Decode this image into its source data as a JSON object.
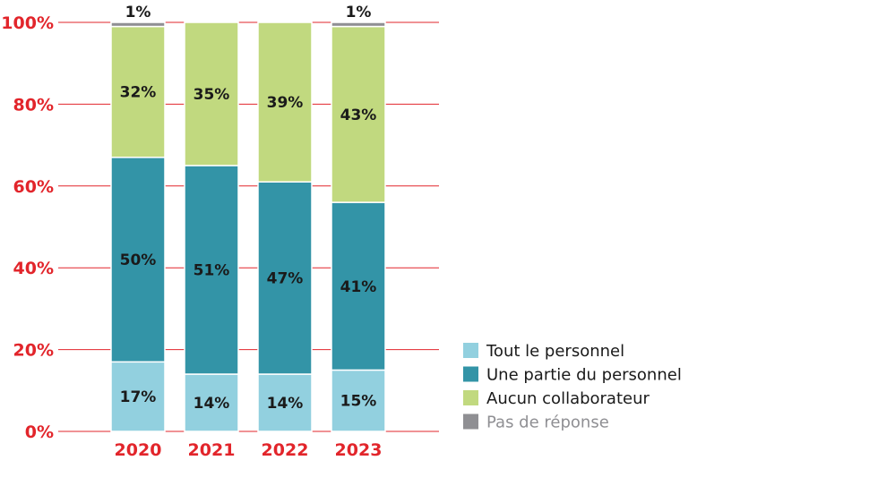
{
  "chart_data": {
    "type": "bar",
    "stacked": true,
    "categories": [
      "2020",
      "2021",
      "2022",
      "2023"
    ],
    "series": [
      {
        "name": "Tout le personnel",
        "values": [
          17,
          14,
          14,
          15
        ],
        "labels": [
          "17%",
          "14%",
          "14%",
          "15%"
        ],
        "color": "#92d0df"
      },
      {
        "name": "Une partie du personnel",
        "values": [
          50,
          51,
          47,
          41
        ],
        "labels": [
          "50%",
          "51%",
          "47%",
          "41%"
        ],
        "color": "#3394a7"
      },
      {
        "name": "Aucun collaborateur",
        "values": [
          32,
          35,
          39,
          43
        ],
        "labels": [
          "32%",
          "35%",
          "39%",
          "43%"
        ],
        "color": "#c1d97f"
      },
      {
        "name": "Pas de réponse",
        "values": [
          1,
          0,
          0,
          1
        ],
        "labels": [
          "1%",
          "",
          "",
          "1%"
        ],
        "color": "#8f8f93"
      }
    ],
    "ylim": [
      0,
      100
    ],
    "yticks": [
      0,
      20,
      40,
      60,
      80,
      100
    ],
    "ytick_labels": [
      "0%",
      "20%",
      "40%",
      "60%",
      "80%",
      "100%"
    ],
    "grid": true,
    "legend_position": "bottom-right",
    "colors": {
      "axis_text": "#e2252b",
      "grid": "#e2252b",
      "label_text": "#1a1a1a",
      "legend_text": "#1a1a1a",
      "legend_text_muted": "#8f8f93"
    }
  }
}
